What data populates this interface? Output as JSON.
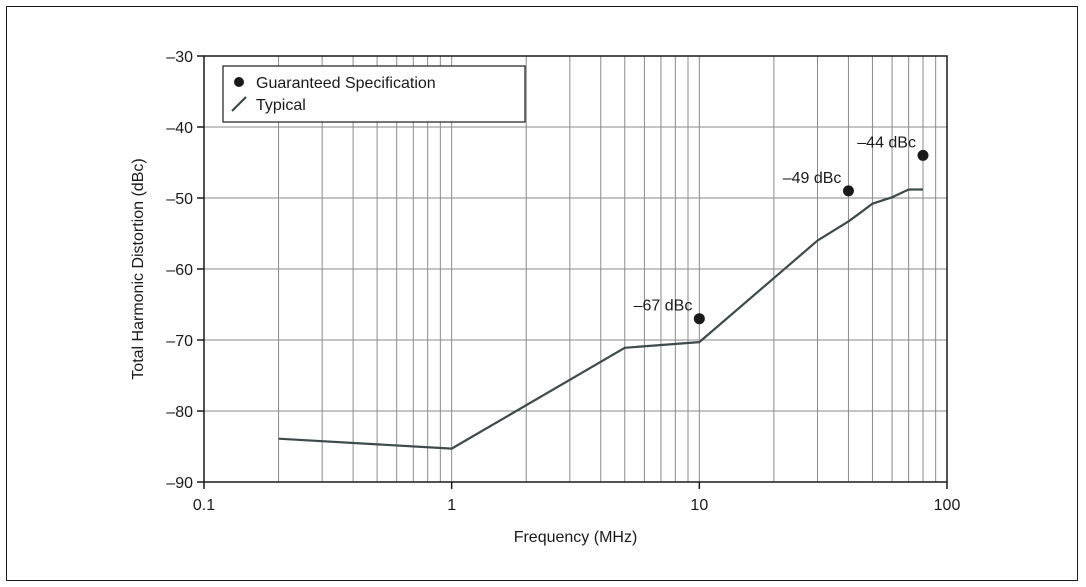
{
  "chart_data": {
    "type": "line",
    "xlabel": "Frequency (MHz)",
    "ylabel": "Total Harmonic Distortion (dBc)",
    "x_scale": "log",
    "xlim": [
      0.1,
      100
    ],
    "ylim": [
      -90,
      -30
    ],
    "x_ticks": [
      0.1,
      1,
      10,
      100
    ],
    "x_tick_labels": [
      "0.1",
      "1",
      "10",
      "100"
    ],
    "y_ticks": [
      -30,
      -40,
      -50,
      -60,
      -70,
      -80,
      -90
    ],
    "y_tick_labels": [
      "–30",
      "–40",
      "–50",
      "–60",
      "–70",
      "–80",
      "–90"
    ],
    "grid": true,
    "legend_position": "top-left",
    "series": [
      {
        "name": "Guaranteed Specification",
        "kind": "scatter",
        "color": "#1a1a1a",
        "points": [
          {
            "x": 10,
            "y": -67,
            "label": "–67 dBc"
          },
          {
            "x": 40,
            "y": -49,
            "label": "–49 dBc"
          },
          {
            "x": 80,
            "y": -44,
            "label": "–44 dBc"
          }
        ]
      },
      {
        "name": "Typical",
        "kind": "line",
        "color": "#3d4a4a",
        "points": [
          {
            "x": 0.2,
            "y": -83.9
          },
          {
            "x": 1,
            "y": -85.3
          },
          {
            "x": 5,
            "y": -71.1
          },
          {
            "x": 10,
            "y": -70.3
          },
          {
            "x": 30,
            "y": -56.0
          },
          {
            "x": 40,
            "y": -53.3
          },
          {
            "x": 45,
            "y": -52.0
          },
          {
            "x": 50,
            "y": -50.8
          },
          {
            "x": 60,
            "y": -49.9
          },
          {
            "x": 70,
            "y": -48.8
          },
          {
            "x": 80,
            "y": -48.8
          }
        ]
      }
    ]
  }
}
